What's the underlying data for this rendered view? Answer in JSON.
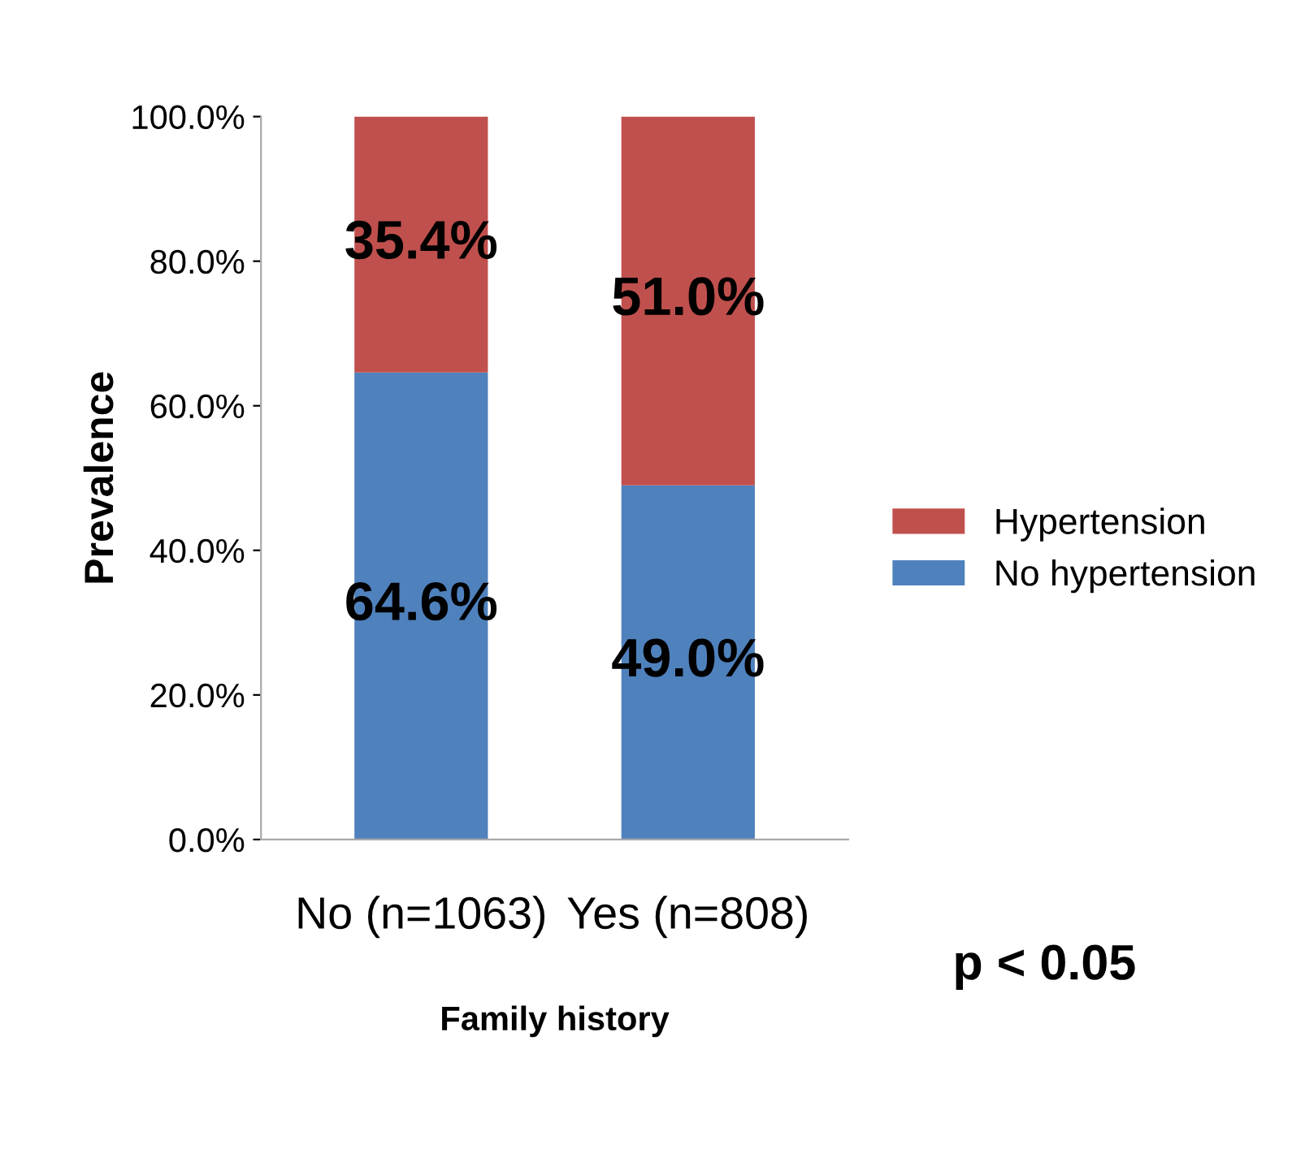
{
  "chart_data": {
    "type": "bar",
    "stacked": true,
    "xlabel": "Family history",
    "ylabel": "Prevalence",
    "categories": [
      "No (n=1063)",
      "Yes (n=808)"
    ],
    "series": [
      {
        "name": "No hypertension",
        "color": "#4f81bd",
        "values": [
          64.6,
          49.0
        ],
        "value_labels": [
          "64.6%",
          "49.0%"
        ]
      },
      {
        "name": "Hypertension",
        "color": "#c0504d",
        "values": [
          35.4,
          51.0
        ],
        "value_labels": [
          "35.4%",
          "51.0%"
        ]
      }
    ],
    "ylim": [
      0,
      100
    ],
    "yticks": [
      {
        "value": 0,
        "label": "0.0%"
      },
      {
        "value": 20,
        "label": "20.0%"
      },
      {
        "value": 40,
        "label": "40.0%"
      },
      {
        "value": 60,
        "label": "60.0%"
      },
      {
        "value": 80,
        "label": "80.0%"
      },
      {
        "value": 100,
        "label": "100.0%"
      }
    ],
    "legend": "right",
    "grid": false,
    "annotations": [
      "p < 0.05"
    ]
  }
}
